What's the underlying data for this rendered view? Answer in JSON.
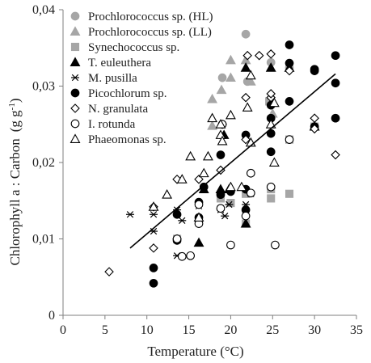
{
  "chart_data": {
    "type": "scatter",
    "title": "",
    "xlabel": "Temperature (°C)",
    "ylabel_main": "Chlorophyll a : Carbon",
    "ylabel_unit_prefix": "(g g",
    "ylabel_unit_sup": "-1",
    "ylabel_unit_suffix": ")",
    "xlim": [
      0,
      35
    ],
    "ylim": [
      0,
      0.04
    ],
    "x_ticks": [
      0,
      5,
      10,
      15,
      20,
      25,
      30,
      35
    ],
    "x_tick_labels": [
      "0",
      "5",
      "10",
      "15",
      "20",
      "25",
      "30",
      "35"
    ],
    "y_ticks": [
      0,
      0.01,
      0.02,
      0.03,
      0.04
    ],
    "y_tick_labels": [
      "0",
      "0,01",
      "0,02",
      "0,03",
      "0,04"
    ],
    "grid": false,
    "legend_position": "top-left",
    "series": [
      {
        "name": "Prochlorococcus sp. (HL)",
        "marker": "circle",
        "color": "#a6a6a6",
        "stroke": "#a6a6a6",
        "points": [
          [
            19,
            0.0311
          ],
          [
            21.8,
            0.0368
          ],
          [
            24.8,
            0.0331
          ],
          [
            27,
            0.0324
          ],
          [
            22,
            0.0306
          ]
        ]
      },
      {
        "name": "Prochlorococcus sp. (LL)",
        "marker": "triangle",
        "color": "#a6a6a6",
        "stroke": "#a6a6a6",
        "points": [
          [
            17.8,
            0.0283
          ],
          [
            18.9,
            0.0295
          ],
          [
            20,
            0.0334
          ],
          [
            21.8,
            0.0334
          ],
          [
            20,
            0.0311
          ],
          [
            22.4,
            0.0306
          ],
          [
            25,
            0.0264
          ],
          [
            17.8,
            0.0248
          ]
        ]
      },
      {
        "name": "Synechococcus sp.",
        "marker": "square",
        "color": "#a6a6a6",
        "stroke": "#a6a6a6",
        "points": [
          [
            13.6,
            0.01
          ],
          [
            16.2,
            0.0124
          ],
          [
            18.8,
            0.0153
          ],
          [
            20,
            0.0147
          ],
          [
            21.8,
            0.012
          ],
          [
            21.8,
            0.0159
          ],
          [
            24.8,
            0.0153
          ],
          [
            24.8,
            0.0165
          ],
          [
            27,
            0.0159
          ],
          [
            27,
            0.023
          ],
          [
            24.6,
            0.028
          ],
          [
            30,
            0.0247
          ]
        ]
      },
      {
        "name": "T. euleuthera",
        "marker": "triangle",
        "color": "#000000",
        "stroke": "#000000",
        "points": [
          [
            19.2,
            0.0236
          ],
          [
            21.8,
            0.0324
          ],
          [
            19.8,
            0.0165
          ],
          [
            16.2,
            0.0095
          ],
          [
            16.8,
            0.0165
          ],
          [
            24.8,
            0.0324
          ],
          [
            27,
            0.0324
          ],
          [
            21.8,
            0.012
          ],
          [
            18.8,
            0.0165
          ],
          [
            30,
            0.0247
          ]
        ]
      },
      {
        "name": "M. pusilla",
        "marker": "star",
        "color": "#000000",
        "stroke": "#000000",
        "points": [
          [
            8,
            0.0132
          ],
          [
            10.8,
            0.0132
          ],
          [
            10.8,
            0.011
          ],
          [
            13.6,
            0.0138
          ],
          [
            13.6,
            0.0078
          ],
          [
            14.2,
            0.0124
          ],
          [
            16.2,
            0.0143
          ],
          [
            18.8,
            0.0138
          ],
          [
            19.3,
            0.013
          ],
          [
            19.8,
            0.0145
          ],
          [
            21.8,
            0.0145
          ],
          [
            22.4,
            0.0159
          ],
          [
            19,
            0.025
          ]
        ]
      },
      {
        "name": "Picochlorum sp.",
        "marker": "circle",
        "color": "#000000",
        "stroke": "#000000",
        "points": [
          [
            10.8,
            0.0042
          ],
          [
            10.8,
            0.0062
          ],
          [
            13.6,
            0.0098
          ],
          [
            13.6,
            0.0132
          ],
          [
            16.2,
            0.0128
          ],
          [
            16.2,
            0.0148
          ],
          [
            16.8,
            0.0168
          ],
          [
            18.8,
            0.0158
          ],
          [
            18.8,
            0.021
          ],
          [
            20,
            0.0162
          ],
          [
            21.8,
            0.0138
          ],
          [
            21.8,
            0.0236
          ],
          [
            24.8,
            0.0258
          ],
          [
            24.8,
            0.0275
          ],
          [
            24.8,
            0.0238
          ],
          [
            27,
            0.0354
          ],
          [
            27,
            0.033
          ],
          [
            27,
            0.028
          ],
          [
            30,
            0.032
          ],
          [
            30,
            0.0322
          ],
          [
            30,
            0.0247
          ],
          [
            32.5,
            0.034
          ],
          [
            32.5,
            0.0304
          ],
          [
            32.5,
            0.0258
          ],
          [
            21.8,
            0.0165
          ],
          [
            24.8,
            0.0214
          ]
        ]
      },
      {
        "name": "N. granulata",
        "marker": "diamond",
        "color": "#ffffff",
        "stroke": "#000000",
        "points": [
          [
            5.5,
            0.0057
          ],
          [
            10.8,
            0.0088
          ],
          [
            10.8,
            0.0142
          ],
          [
            13.6,
            0.0178
          ],
          [
            13.6,
            0.01
          ],
          [
            16.2,
            0.0178
          ],
          [
            18.8,
            0.019
          ],
          [
            21.8,
            0.023
          ],
          [
            21.8,
            0.0285
          ],
          [
            23.4,
            0.034
          ],
          [
            24.8,
            0.0342
          ],
          [
            24.8,
            0.0285
          ],
          [
            24.8,
            0.029
          ],
          [
            27,
            0.032
          ],
          [
            30,
            0.0258
          ],
          [
            30,
            0.0244
          ],
          [
            32.5,
            0.021
          ],
          [
            19,
            0.025
          ],
          [
            22,
            0.034
          ]
        ]
      },
      {
        "name": "I. rotunda",
        "marker": "circle",
        "color": "#ffffff",
        "stroke": "#000000",
        "points": [
          [
            13.6,
            0.01
          ],
          [
            14.2,
            0.0077
          ],
          [
            15.2,
            0.0078
          ],
          [
            16.2,
            0.0145
          ],
          [
            18.8,
            0.014
          ],
          [
            19,
            0.025
          ],
          [
            20,
            0.0092
          ],
          [
            21.8,
            0.013
          ],
          [
            22.4,
            0.0186
          ],
          [
            22.4,
            0.016
          ],
          [
            24.8,
            0.0168
          ],
          [
            25.3,
            0.0092
          ],
          [
            27,
            0.023
          ],
          [
            16.2,
            0.012
          ]
        ]
      },
      {
        "name": "Phaeomonas sp.",
        "marker": "triangle",
        "color": "#ffffff",
        "stroke": "#000000",
        "points": [
          [
            10.8,
            0.0142
          ],
          [
            12.4,
            0.0158
          ],
          [
            14.2,
            0.0178
          ],
          [
            15.2,
            0.0208
          ],
          [
            16.2,
            0.0128
          ],
          [
            16.8,
            0.0186
          ],
          [
            17.3,
            0.0208
          ],
          [
            17.8,
            0.0258
          ],
          [
            18.8,
            0.0236
          ],
          [
            18.8,
            0.025
          ],
          [
            20,
            0.0168
          ],
          [
            21.3,
            0.0168
          ],
          [
            22,
            0.0272
          ],
          [
            22.4,
            0.0226
          ],
          [
            22.4,
            0.0314
          ],
          [
            24.8,
            0.025
          ],
          [
            25.2,
            0.02
          ],
          [
            25.2,
            0.0278
          ],
          [
            19,
            0.0228
          ],
          [
            20,
            0.0262
          ]
        ]
      }
    ],
    "trendline": {
      "x": [
        8,
        32.5
      ],
      "y": [
        0.0088,
        0.0316
      ]
    }
  }
}
